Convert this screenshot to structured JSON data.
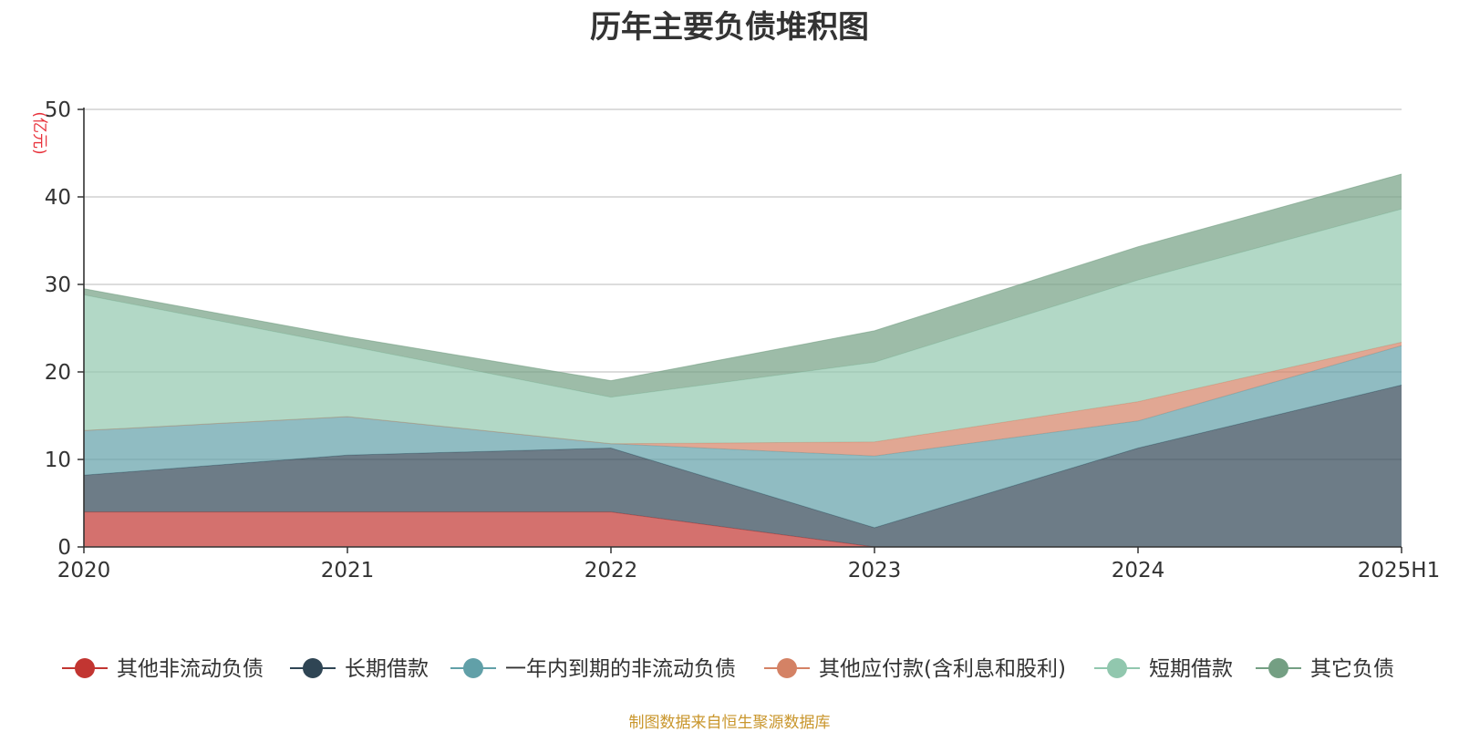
{
  "chart_data": {
    "type": "area",
    "stacked": true,
    "title": "历年主要负债堆积图",
    "ylabel": "(亿元)",
    "ylim": [
      0,
      50
    ],
    "yticks": [
      0,
      10,
      20,
      30,
      40,
      50
    ],
    "grid": true,
    "legend_position": "bottom",
    "categories": [
      "2020",
      "2021",
      "2022",
      "2023",
      "2024",
      "2025H1"
    ],
    "series": [
      {
        "name": "其他非流动负债",
        "color": "#c23531",
        "values": [
          4.0,
          4.0,
          4.0,
          0.0,
          0.0,
          0.0
        ]
      },
      {
        "name": "长期借款",
        "color": "#2f4554",
        "values": [
          4.2,
          6.5,
          7.3,
          2.2,
          11.3,
          18.5
        ]
      },
      {
        "name": "一年内到期的非流动负债",
        "color": "#61a0a8",
        "values": [
          5.1,
          4.4,
          0.5,
          8.2,
          3.1,
          4.5
        ]
      },
      {
        "name": "其他应付款(含利息和股利)",
        "color": "#d48265",
        "values": [
          0.0,
          0.0,
          0.0,
          1.6,
          2.2,
          0.4
        ]
      },
      {
        "name": "短期借款",
        "color": "#91c7ae",
        "values": [
          15.5,
          8.1,
          5.3,
          9.1,
          13.9,
          15.2
        ]
      },
      {
        "name": "其它负债",
        "color": "#749f83",
        "values": [
          0.7,
          1.0,
          1.9,
          3.6,
          3.8,
          4.0
        ]
      }
    ]
  },
  "source_note": "制图数据来自恒生聚源数据库"
}
